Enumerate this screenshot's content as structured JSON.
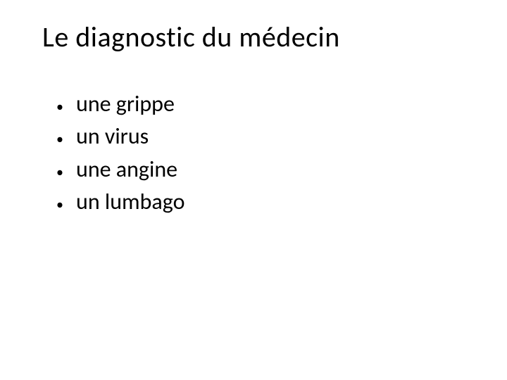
{
  "slide": {
    "title": "Le diagnostic du médecin",
    "title_fontsize": 40,
    "title_color": "#000000",
    "bullets": [
      "une grippe",
      "un virus",
      "une angine",
      "un lumbago"
    ],
    "bullet_fontsize": 32,
    "bullet_color": "#000000",
    "bullet_marker": "•",
    "background_color": "#ffffff",
    "font_family": "Calibri"
  }
}
